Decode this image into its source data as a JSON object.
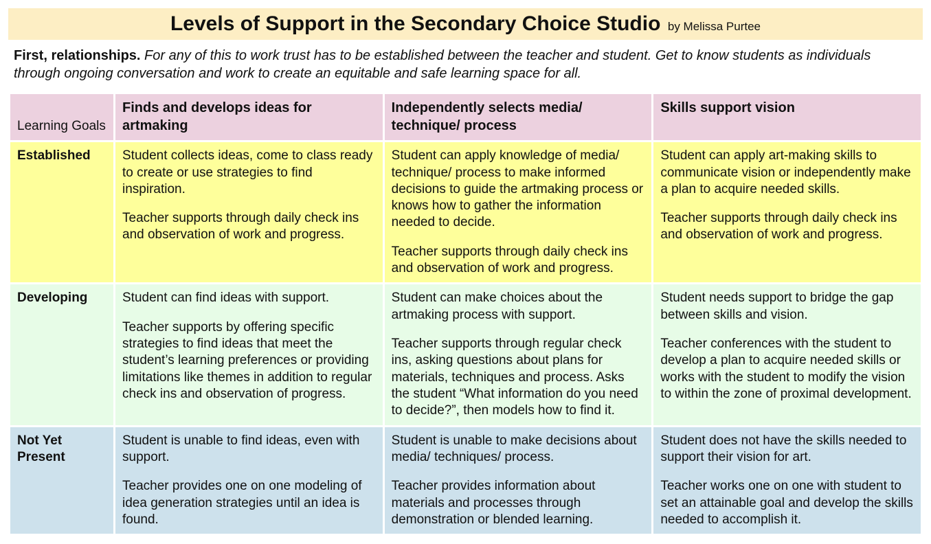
{
  "colors": {
    "title_bg": "#fdeec4",
    "header_bg": "#ecd1df",
    "established_bg": "#feff9b",
    "developing_bg": "#e7fce7",
    "notyet_bg": "#cde1ec",
    "page_bg": "#ffffff",
    "text": "#111111"
  },
  "title": {
    "main": "Levels of Support in the Secondary Choice Studio",
    "byline": "by Melissa Purtee"
  },
  "intro": {
    "lead": "First, relationships.",
    "body": "For any of this to work trust has to be established between the teacher and student. Get to know students as individuals through ongoing conversation and work to create an equitable and safe learning space for all."
  },
  "table": {
    "corner_label": "Learning Goals",
    "columns": [
      "Finds and develops ideas for artmaking",
      "Independently selects media/ technique/ process",
      "Skills support vision"
    ],
    "rows": [
      {
        "label": "Established",
        "cells": [
          {
            "student": "Student collects ideas, come to class ready to create or use strategies to find inspiration.",
            "teacher": "Teacher supports through daily check ins and observation of work and progress."
          },
          {
            "student": "Student can apply knowledge of media/ technique/ process to make informed decisions to guide the artmaking process or knows how to gather the information needed to decide.",
            "teacher": "Teacher supports through daily check ins and observation of work and progress."
          },
          {
            "student": "Student can apply art-making skills to communicate vision or independently make a plan to acquire needed skills.",
            "teacher": "Teacher supports through daily check ins and observation of work and progress."
          }
        ]
      },
      {
        "label": "Developing",
        "cells": [
          {
            "student": "Student can find ideas with support.",
            "teacher": "Teacher supports by offering specific strategies to find ideas that meet the student’s learning preferences or providing limitations like themes  in addition to regular check ins and observation of progress."
          },
          {
            "student": "Student can make choices about the artmaking process with support.",
            "teacher": "Teacher supports through regular check ins, asking questions about plans for materials, techniques and process. Asks the student “What information do you need to decide?”, then models how to find it."
          },
          {
            "student": "Student needs support to bridge the gap between skills and vision.",
            "teacher": "Teacher conferences with the student to develop a plan to acquire needed skills or works with the student to modify the vision to within the zone of proximal development."
          }
        ]
      },
      {
        "label": "Not Yet Present",
        "cells": [
          {
            "student": "Student is unable to find ideas, even with support.",
            "teacher": "Teacher provides one on one modeling of idea generation strategies until an idea is found."
          },
          {
            "student": "Student is unable to make decisions about media/ techniques/ process.",
            "teacher": "Teacher provides information about materials and processes through demonstration or blended learning."
          },
          {
            "student": "Student does not have the skills needed to support their vision for art.",
            "teacher": "Teacher works one on one with student to set an attainable goal and develop the skills needed to accomplish it."
          }
        ]
      }
    ]
  }
}
